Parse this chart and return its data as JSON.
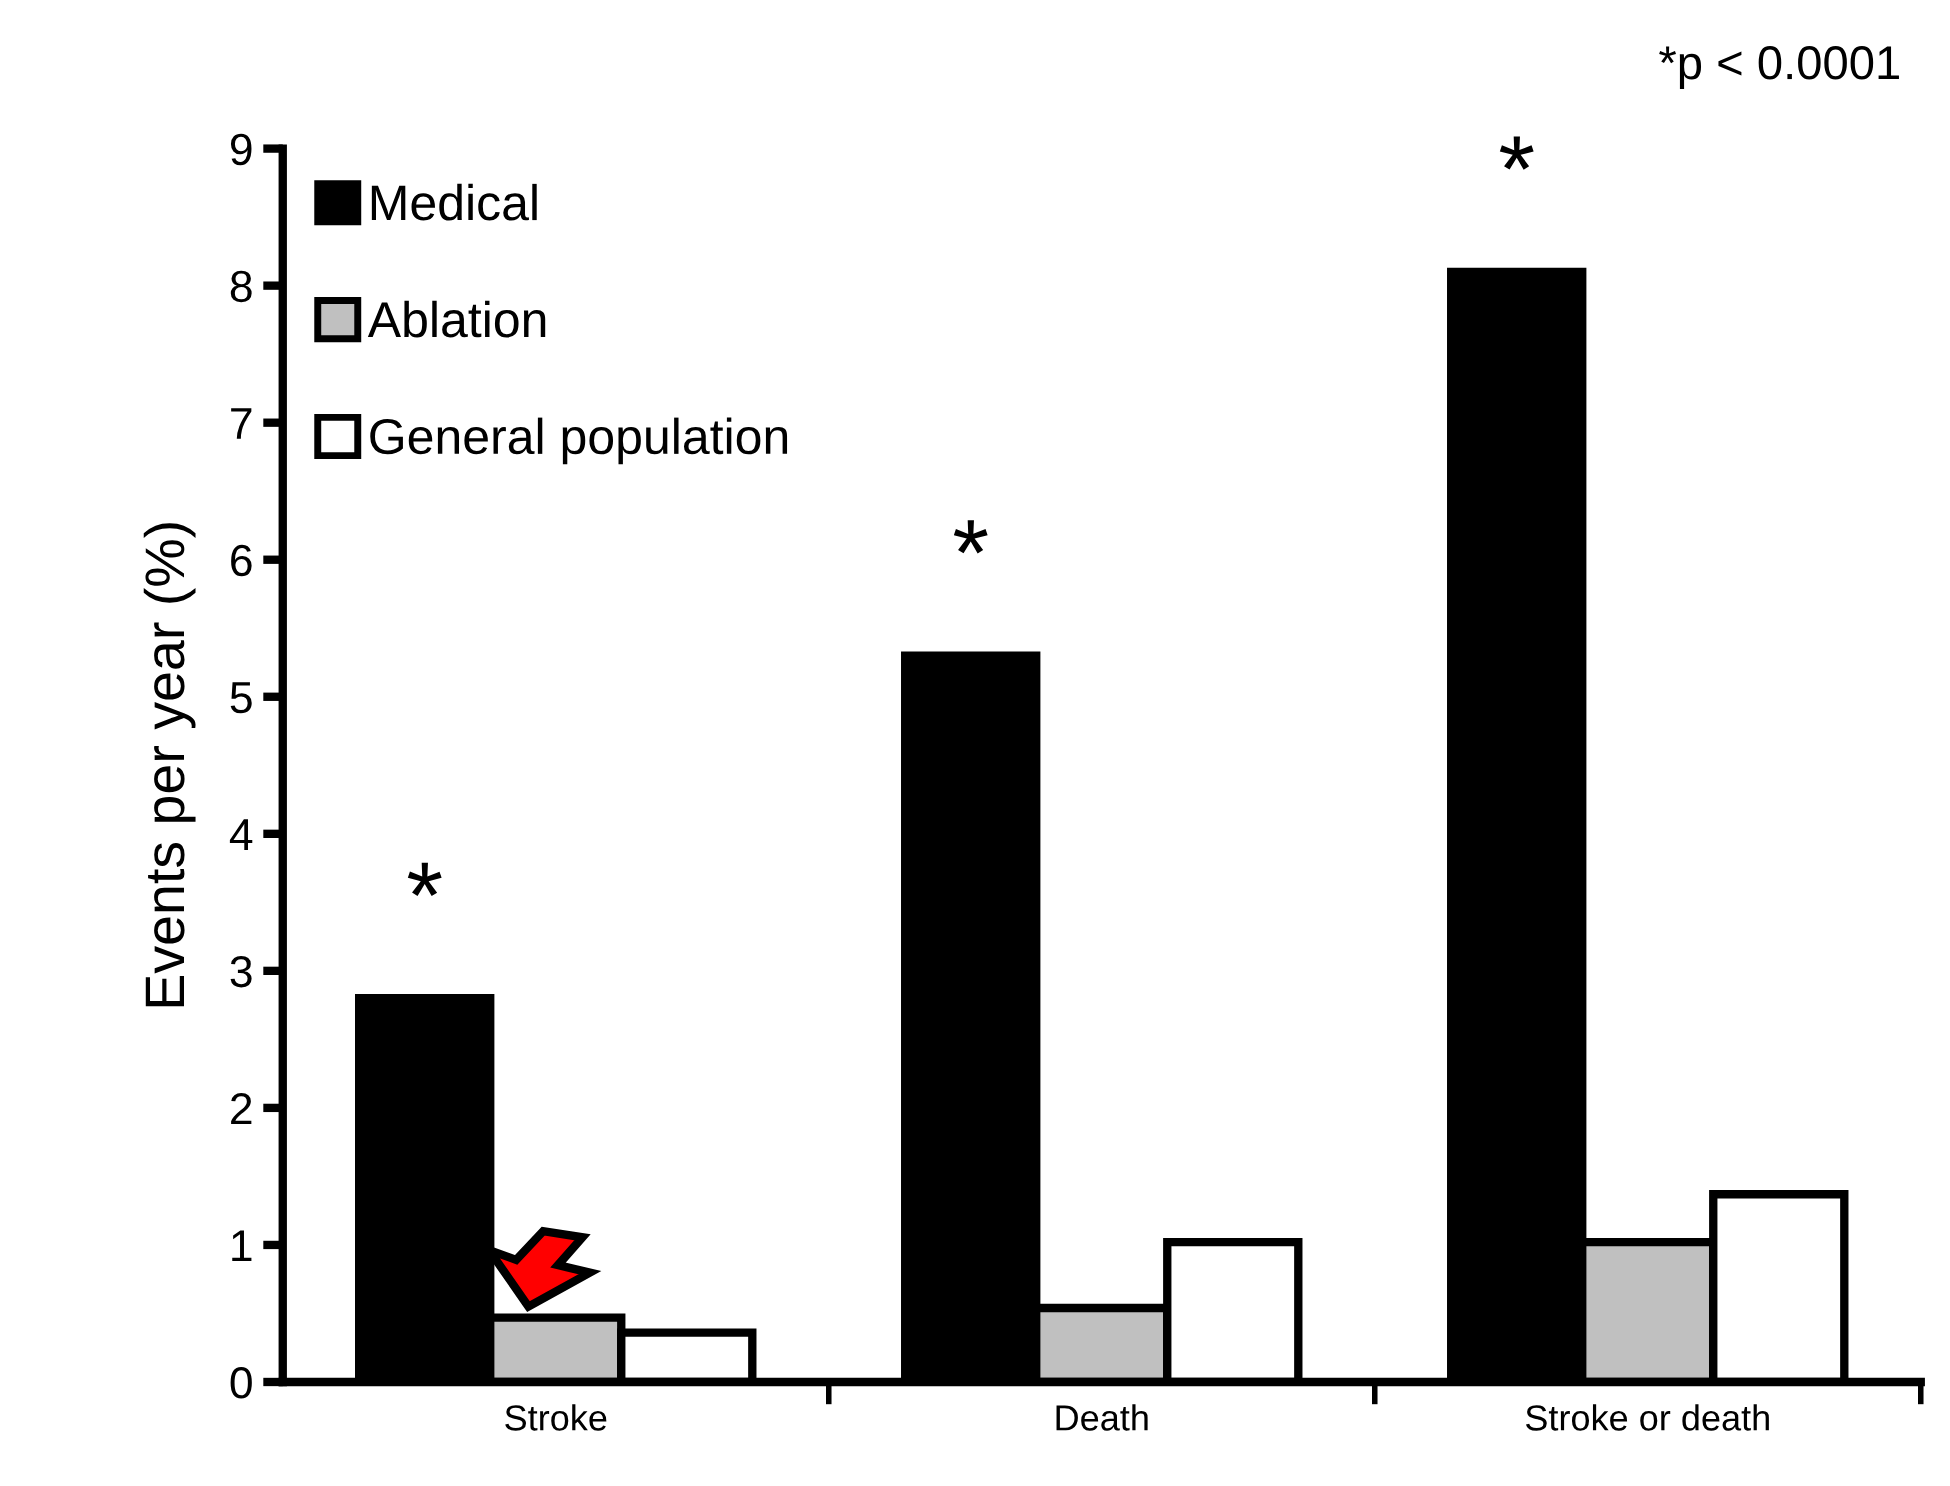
{
  "chart_data": {
    "type": "bar",
    "ylabel": "Events per year (%)",
    "categories": [
      "Stroke",
      "Death",
      "Stroke or death"
    ],
    "series": [
      {
        "name": "Medical",
        "color": "#000000",
        "values": [
          2.8,
          5.3,
          8.1
        ]
      },
      {
        "name": "Ablation",
        "color": "#c0c0c0",
        "values": [
          0.47,
          0.54,
          1.02
        ]
      },
      {
        "name": "General population",
        "color": "#ffffff",
        "values": [
          0.36,
          1.02,
          1.37
        ]
      }
    ],
    "ylim": [
      0,
      9
    ],
    "yticks": [
      0,
      1,
      2,
      3,
      4,
      5,
      6,
      7,
      8,
      9
    ],
    "grid": false,
    "legend": "top left",
    "annotations": [
      "*",
      "*",
      "*",
      "*p < 0.0001"
    ]
  }
}
